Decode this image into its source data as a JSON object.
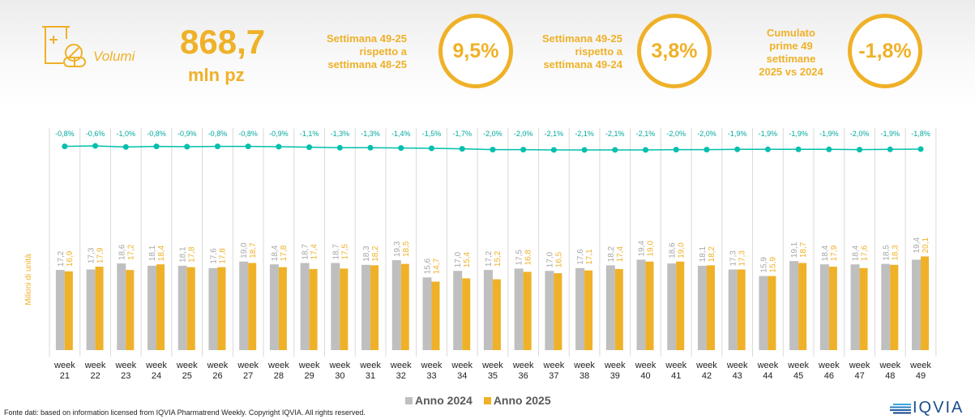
{
  "header": {
    "section_label": "Volumi",
    "icon": "pill-bottle-icon",
    "total_value": "868,7",
    "total_unit": "mln pz",
    "kpis": [
      {
        "label": "Settimana 49-25 rispetto a settimana 48-25",
        "lines": [
          "Settimana 49-25",
          "rispetto a",
          "settimana 48-25"
        ],
        "value": "9,5%"
      },
      {
        "label": "Settimana 49-25 rispetto a settimana 49-24",
        "lines": [
          "Settimana 49-25",
          "rispetto a",
          "settimana 49-24"
        ],
        "value": "3,8%"
      },
      {
        "label": "Cumulato prime 49 settimane 2025 vs 2024",
        "lines": [
          "Cumulato",
          "prime 49",
          "settimane",
          "2025 vs 2024"
        ],
        "value": "-1,8%"
      }
    ]
  },
  "chart_data": {
    "type": "bar",
    "ylabel": "Milioni di unità",
    "ylim": [
      0,
      25
    ],
    "grid": "vertical separators",
    "legend_position": "bottom",
    "categories": [
      "week 21",
      "week 22",
      "week 23",
      "week 24",
      "week 25",
      "week 26",
      "week 27",
      "week 28",
      "week 29",
      "week 30",
      "week 31",
      "week 32",
      "week 33",
      "week 34",
      "week 35",
      "week 36",
      "week 37",
      "week 38",
      "week 39",
      "week 40",
      "week 41",
      "week 42",
      "week 43",
      "week 44",
      "week 45",
      "week 46",
      "week 47",
      "week 48",
      "week 49"
    ],
    "series": [
      {
        "name": "Anno 2024",
        "color": "#BFBFBF",
        "values": [
          17.2,
          17.3,
          18.6,
          18.1,
          18.1,
          17.6,
          19.0,
          18.4,
          18.7,
          18.7,
          18.3,
          19.3,
          15.6,
          17.0,
          17.2,
          17.5,
          17.0,
          17.6,
          18.2,
          19.4,
          18.6,
          18.1,
          17.3,
          15.9,
          19.1,
          18.4,
          18.4,
          18.5,
          19.4
        ],
        "labels": [
          "17,2",
          "17,3",
          "18,6",
          "18,1",
          "18,1",
          "17,6",
          "19,0",
          "18,4",
          "18,7",
          "18,7",
          "18,3",
          "19,3",
          "15,6",
          "17,0",
          "17,2",
          "17,5",
          "17,0",
          "17,6",
          "18,2",
          "19,4",
          "18,6",
          "18,1",
          "17,3",
          "15,9",
          "19,1",
          "18,4",
          "18,4",
          "18,5",
          "19,4"
        ]
      },
      {
        "name": "Anno 2025",
        "color": "#EFB128",
        "values": [
          16.9,
          17.9,
          17.2,
          18.4,
          17.8,
          17.8,
          18.7,
          17.8,
          17.4,
          17.5,
          18.2,
          18.5,
          14.7,
          15.4,
          15.2,
          16.8,
          16.5,
          17.1,
          17.4,
          19.0,
          19.0,
          18.2,
          17.3,
          15.9,
          18.7,
          17.9,
          17.6,
          18.3,
          20.1
        ],
        "labels": [
          "16,9",
          "17,9",
          "17,2",
          "18,4",
          "17,8",
          "17,8",
          "18,7",
          "17,8",
          "17,4",
          "17,5",
          "18,2",
          "18,5",
          "14,7",
          "15,4",
          "15,2",
          "16,8",
          "16,5",
          "17,1",
          "17,4",
          "19,0",
          "19,0",
          "18,2",
          "17,3",
          "15,9",
          "18,7",
          "17,9",
          "17,6",
          "18,3",
          "20,1"
        ]
      }
    ],
    "cumulative_change": {
      "color": "#00BFAE",
      "values": [
        -0.8,
        -0.6,
        -1.0,
        -0.8,
        -0.9,
        -0.8,
        -0.8,
        -0.9,
        -1.1,
        -1.3,
        -1.3,
        -1.4,
        -1.5,
        -1.7,
        -2.0,
        -2.0,
        -2.1,
        -2.1,
        -2.1,
        -2.1,
        -2.0,
        -2.0,
        -1.9,
        -1.9,
        -1.9,
        -1.9,
        -2.0,
        -1.9,
        -1.8
      ],
      "labels": [
        "-0,8%",
        "-0,6%",
        "-1,0%",
        "-0,8%",
        "-0,9%",
        "-0,8%",
        "-0,8%",
        "-0,9%",
        "-1,1%",
        "-1,3%",
        "-1,3%",
        "-1,4%",
        "-1,5%",
        "-1,7%",
        "-2,0%",
        "-2,0%",
        "-2,1%",
        "-2,1%",
        "-2,1%",
        "-2,1%",
        "-2,0%",
        "-2,0%",
        "-1,9%",
        "-1,9%",
        "-1,9%",
        "-1,9%",
        "-2,0%",
        "-1,9%",
        "-1,8%"
      ]
    }
  },
  "legend": {
    "items": [
      "Anno 2024",
      "Anno 2025"
    ]
  },
  "footer": {
    "source": "Fonte dati: based on information licensed from IQVIA Pharmatrend Weekly. Copyright IQVIA. All rights reserved."
  },
  "logo": {
    "text": "IQVIA"
  }
}
